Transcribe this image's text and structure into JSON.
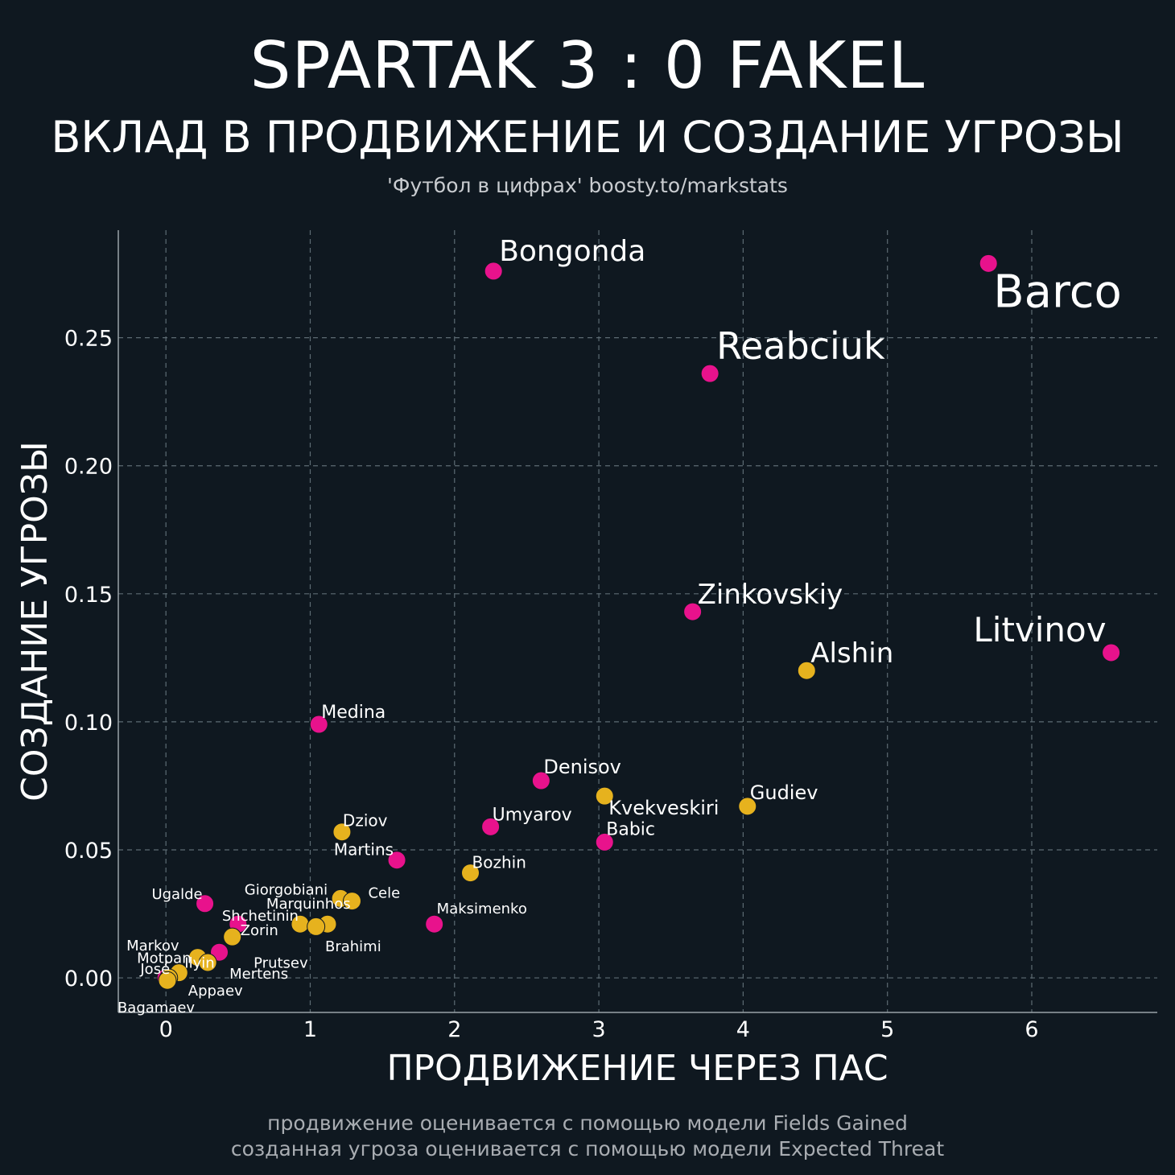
{
  "header": {
    "title": "SPARTAK 3 : 0 FAKEL",
    "subtitle": "ВКЛАД В ПРОДВИЖЕНИЕ И СОЗДАНИЕ УГРОЗЫ",
    "source": "'Футбол в цифрах' boosty.to/markstats"
  },
  "footnote": {
    "line1": "продвижение оценивается с помощью модели Fields Gained",
    "line2": "созданная угроза оценивается с помощью модели Expected Threat"
  },
  "colors": {
    "background": "#0f1820",
    "spartak": "#e8128c",
    "fakel": "#e6b21e"
  },
  "chart_data": {
    "type": "scatter",
    "title": "ВКЛАД В ПРОДВИЖЕНИЕ И СОЗДАНИЕ УГРОЗЫ",
    "xlabel": "ПРОДВИЖЕНИЕ ЧЕРЕЗ ПАС",
    "ylabel": "СОЗДАНИЕ УГРОЗЫ",
    "xlim": [
      -0.33,
      6.87
    ],
    "ylim": [
      -0.0135,
      0.292
    ],
    "xticks": [
      0,
      1,
      2,
      3,
      4,
      5,
      6
    ],
    "xtick_labels": [
      "0",
      "1",
      "2",
      "3",
      "4",
      "5",
      "6"
    ],
    "yticks": [
      0,
      0.05,
      0.1,
      0.15,
      0.2,
      0.25
    ],
    "ytick_labels": [
      "0.00",
      "0.05",
      "0.10",
      "0.15",
      "0.20",
      "0.25"
    ],
    "grid": true,
    "legend": "none",
    "series": [
      {
        "team": "spartak",
        "color": "#e8128c",
        "points": [
          {
            "name": "Barco",
            "x": 5.7,
            "y": 0.279
          },
          {
            "name": "Bongonda",
            "x": 2.27,
            "y": 0.276
          },
          {
            "name": "Reabciuk",
            "x": 3.77,
            "y": 0.236
          },
          {
            "name": "Zinkovskiy",
            "x": 3.65,
            "y": 0.143
          },
          {
            "name": "Litvinov",
            "x": 6.55,
            "y": 0.127
          },
          {
            "name": "Medina",
            "x": 1.06,
            "y": 0.099
          },
          {
            "name": "Denisov",
            "x": 2.6,
            "y": 0.077
          },
          {
            "name": "Umyarov",
            "x": 2.25,
            "y": 0.059
          },
          {
            "name": "Babic",
            "x": 3.04,
            "y": 0.053
          },
          {
            "name": "Martins",
            "x": 1.6,
            "y": 0.046
          },
          {
            "name": "Ugalde",
            "x": 0.27,
            "y": 0.029
          },
          {
            "name": "Maksimenko",
            "x": 1.86,
            "y": 0.021
          },
          {
            "name": "Shchetinin",
            "x": 0.5,
            "y": 0.021
          },
          {
            "name": "Markov",
            "x": 0.37,
            "y": 0.01
          },
          {
            "name": "José",
            "x": 0.0,
            "y": 0.0
          }
        ]
      },
      {
        "team": "fakel",
        "color": "#e6b21e",
        "points": [
          {
            "name": "Alshin",
            "x": 4.44,
            "y": 0.12
          },
          {
            "name": "Kvekveskiri",
            "x": 3.04,
            "y": 0.071
          },
          {
            "name": "Gudiev",
            "x": 4.03,
            "y": 0.067
          },
          {
            "name": "Dziov",
            "x": 1.22,
            "y": 0.057
          },
          {
            "name": "Bozhin",
            "x": 2.11,
            "y": 0.041
          },
          {
            "name": "Giorgobiani",
            "x": 1.21,
            "y": 0.031
          },
          {
            "name": "Cele",
            "x": 1.29,
            "y": 0.03
          },
          {
            "name": "Marquinhos",
            "x": 0.93,
            "y": 0.021
          },
          {
            "name": "Brahimi",
            "x": 1.12,
            "y": 0.021
          },
          {
            "name": "Prutsev",
            "x": 1.04,
            "y": 0.02
          },
          {
            "name": "Zorin",
            "x": 0.46,
            "y": 0.016
          },
          {
            "name": "Motpan",
            "x": 0.22,
            "y": 0.008
          },
          {
            "name": "Mertens",
            "x": 0.29,
            "y": 0.006
          },
          {
            "name": "Ilyin",
            "x": 0.09,
            "y": 0.002
          },
          {
            "name": "Appaev",
            "x": 0.02,
            "y": 0.0
          },
          {
            "name": "Bagamaev",
            "x": 0.01,
            "y": -0.001
          }
        ]
      }
    ]
  }
}
